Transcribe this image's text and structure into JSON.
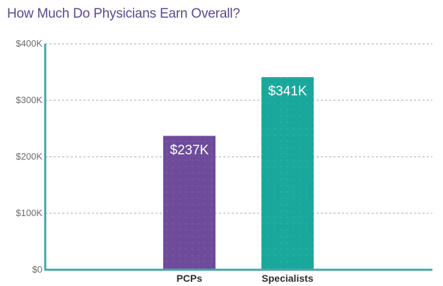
{
  "chart_data": {
    "type": "bar",
    "title": "How Much Do Physicians Earn Overall?",
    "categories": [
      "PCPs",
      "Specialists"
    ],
    "values": [
      237,
      341
    ],
    "data_labels": [
      "$237K",
      "$341K"
    ],
    "ylim": [
      0,
      400
    ],
    "yticks": [
      0,
      100,
      200,
      300,
      400
    ],
    "ytick_labels": [
      "$0",
      "$100K",
      "$200K",
      "$300K",
      "$400K"
    ],
    "bar_colors": [
      "#6e4b9b",
      "#19a89b"
    ],
    "axis_color": "#4aa5a5",
    "grid": true,
    "grid_style": "dashed",
    "legend": "none"
  }
}
